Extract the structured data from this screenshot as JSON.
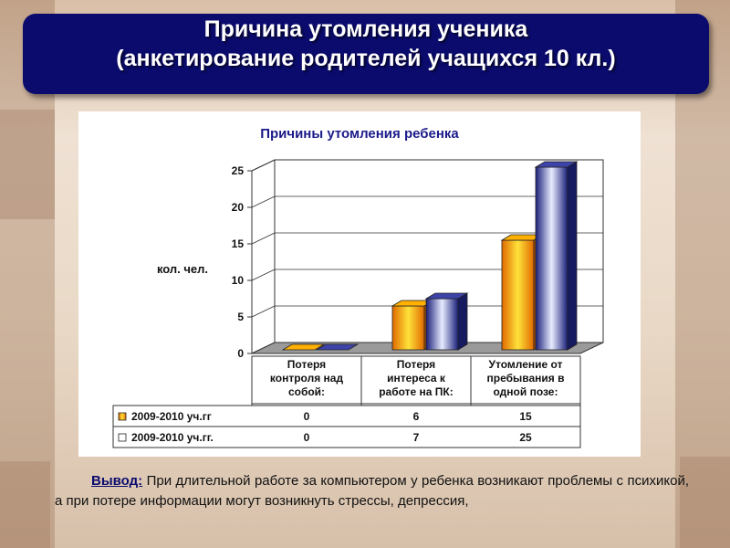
{
  "slide": {
    "title_line1": "Причина утомления ученика",
    "title_line2": "(анкетирование родителей учащихся 10 кл.)"
  },
  "chart_data": {
    "type": "bar",
    "title": "Причины утомления ребенка",
    "ylabel": "кол. чел.",
    "xlabel": "",
    "ylim": [
      0,
      25
    ],
    "yticks": [
      "0",
      "5",
      "10",
      "15",
      "20",
      "25"
    ],
    "categories": [
      [
        "Потеря",
        "контроля над",
        "собой:"
      ],
      [
        "Потеря",
        "интереса к",
        "работе на ПК:"
      ],
      [
        "Утомление от",
        "пребывания в",
        "одной позе:"
      ]
    ],
    "series": [
      {
        "name": "2009-2010 уч.гг",
        "values": [
          0,
          6,
          15
        ],
        "value_labels": [
          "0",
          "6",
          "15"
        ],
        "color": "#f4a000"
      },
      {
        "name": "2009-2010 уч.гг.",
        "values": [
          0,
          7,
          25
        ],
        "value_labels": [
          "0",
          "7",
          "25"
        ],
        "color": "#2a2f8c"
      }
    ],
    "grid": true,
    "legend": "data-table"
  },
  "conclusion": {
    "label": "Вывод:",
    "text": "При длительной работе за компьютером у ребенка возникают проблемы с психикой, а при потере информации могут возникнуть стрессы, депрессия,"
  }
}
